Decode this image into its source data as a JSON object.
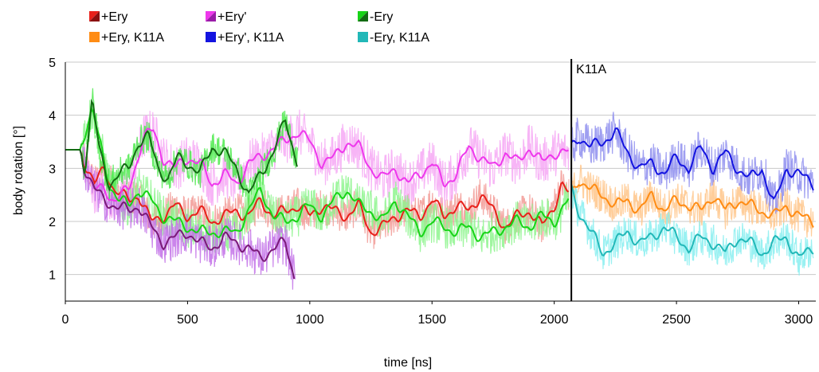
{
  "chart_data": {
    "type": "line",
    "xlabel": "time [ns]",
    "ylabel": "body rotation [°]",
    "xlim": [
      0,
      3070
    ],
    "ylim": [
      0.5,
      5
    ],
    "xticks": [
      0,
      500,
      1000,
      1500,
      2000,
      2500,
      3000
    ],
    "yticks": [
      1,
      2,
      3,
      4,
      5
    ],
    "grid": "horizontal",
    "legend_position": "top-left",
    "annotation": {
      "label": "K11A",
      "x": 2070
    },
    "series": [
      {
        "name": "+Ery",
        "color": "#e8211b",
        "raw_color": "#f29a95",
        "noise": 0.35,
        "points": [
          [
            0,
            3.35
          ],
          [
            60,
            3.35
          ],
          [
            80,
            3.1
          ],
          [
            120,
            2.7
          ],
          [
            160,
            3.0
          ],
          [
            200,
            2.6
          ],
          [
            260,
            2.4
          ],
          [
            300,
            2.5
          ],
          [
            350,
            2.0
          ],
          [
            400,
            2.1
          ],
          [
            450,
            2.3
          ],
          [
            500,
            2.1
          ],
          [
            550,
            2.2
          ],
          [
            600,
            2.0
          ],
          [
            650,
            2.1
          ],
          [
            700,
            2.2
          ],
          [
            750,
            2.1
          ],
          [
            800,
            2.4
          ],
          [
            850,
            2.1
          ],
          [
            900,
            2.2
          ],
          [
            950,
            2.3
          ],
          [
            1000,
            2.1
          ],
          [
            1050,
            2.3
          ],
          [
            1100,
            2.2
          ],
          [
            1150,
            2.1
          ],
          [
            1200,
            2.3
          ],
          [
            1250,
            1.8
          ],
          [
            1300,
            1.9
          ],
          [
            1350,
            2.1
          ],
          [
            1400,
            2.2
          ],
          [
            1450,
            2.1
          ],
          [
            1500,
            2.4
          ],
          [
            1550,
            2.1
          ],
          [
            1600,
            2.3
          ],
          [
            1650,
            2.2
          ],
          [
            1700,
            2.5
          ],
          [
            1750,
            2.2
          ],
          [
            1800,
            1.9
          ],
          [
            1850,
            2.1
          ],
          [
            1900,
            2.2
          ],
          [
            1950,
            1.9
          ],
          [
            2000,
            2.3
          ],
          [
            2030,
            2.7
          ],
          [
            2060,
            2.5
          ]
        ]
      },
      {
        "name": "+Ery'",
        "color": "#ee38ec",
        "raw_color": "#f6a8f4",
        "noise": 0.45,
        "points": [
          [
            0,
            3.35
          ],
          [
            60,
            3.35
          ],
          [
            80,
            3.0
          ],
          [
            120,
            2.6
          ],
          [
            160,
            2.6
          ],
          [
            200,
            2.4
          ],
          [
            260,
            2.6
          ],
          [
            320,
            3.6
          ],
          [
            360,
            3.7
          ],
          [
            400,
            3.2
          ],
          [
            450,
            3.0
          ],
          [
            500,
            3.2
          ],
          [
            550,
            3.1
          ],
          [
            600,
            2.7
          ],
          [
            650,
            2.9
          ],
          [
            700,
            2.7
          ],
          [
            750,
            3.1
          ],
          [
            800,
            3.2
          ],
          [
            850,
            3.4
          ],
          [
            900,
            3.5
          ],
          [
            950,
            3.7
          ],
          [
            1000,
            3.5
          ],
          [
            1050,
            3.1
          ],
          [
            1100,
            3.2
          ],
          [
            1150,
            3.5
          ],
          [
            1200,
            3.4
          ],
          [
            1250,
            3.0
          ],
          [
            1300,
            2.8
          ],
          [
            1350,
            3.0
          ],
          [
            1400,
            2.7
          ],
          [
            1450,
            2.9
          ],
          [
            1500,
            3.1
          ],
          [
            1550,
            2.7
          ],
          [
            1600,
            2.9
          ],
          [
            1650,
            3.4
          ],
          [
            1700,
            3.2
          ],
          [
            1750,
            3.0
          ],
          [
            1800,
            3.3
          ],
          [
            1850,
            3.1
          ],
          [
            1900,
            3.4
          ],
          [
            1950,
            3.1
          ],
          [
            2000,
            3.3
          ],
          [
            2060,
            3.3
          ]
        ]
      },
      {
        "name": "-Ery",
        "color": "#17d417",
        "raw_color": "#8ef58e",
        "noise": 0.4,
        "points": [
          [
            0,
            3.35
          ],
          [
            60,
            3.35
          ],
          [
            80,
            3.7
          ],
          [
            110,
            4.1
          ],
          [
            140,
            3.5
          ],
          [
            180,
            2.7
          ],
          [
            220,
            2.4
          ],
          [
            260,
            2.3
          ],
          [
            300,
            2.6
          ],
          [
            350,
            2.4
          ],
          [
            400,
            2.1
          ],
          [
            450,
            2.0
          ],
          [
            500,
            1.9
          ],
          [
            550,
            1.8
          ],
          [
            600,
            1.8
          ],
          [
            650,
            1.8
          ],
          [
            700,
            1.8
          ],
          [
            750,
            2.2
          ],
          [
            800,
            2.6
          ],
          [
            850,
            2.1
          ],
          [
            900,
            2.0
          ],
          [
            950,
            2.1
          ],
          [
            1000,
            2.3
          ],
          [
            1050,
            2.1
          ],
          [
            1100,
            2.4
          ],
          [
            1150,
            2.6
          ],
          [
            1200,
            2.3
          ],
          [
            1250,
            2.2
          ],
          [
            1300,
            2.0
          ],
          [
            1350,
            2.4
          ],
          [
            1400,
            2.1
          ],
          [
            1450,
            1.8
          ],
          [
            1500,
            2.0
          ],
          [
            1550,
            1.9
          ],
          [
            1600,
            1.8
          ],
          [
            1650,
            1.9
          ],
          [
            1700,
            1.7
          ],
          [
            1750,
            1.8
          ],
          [
            1800,
            1.9
          ],
          [
            1850,
            2.0
          ],
          [
            1900,
            1.9
          ],
          [
            1950,
            2.1
          ],
          [
            2000,
            2.0
          ],
          [
            2060,
            2.4
          ]
        ]
      },
      {
        "name": "+Ery, K11A",
        "color": "#ff8c14",
        "raw_color": "#ffc58a",
        "noise": 0.35,
        "points": [
          [
            2070,
            2.5
          ],
          [
            2100,
            2.8
          ],
          [
            2150,
            2.6
          ],
          [
            2200,
            2.5
          ],
          [
            2250,
            2.3
          ],
          [
            2300,
            2.4
          ],
          [
            2350,
            2.2
          ],
          [
            2400,
            2.5
          ],
          [
            2450,
            2.2
          ],
          [
            2500,
            2.4
          ],
          [
            2550,
            2.3
          ],
          [
            2600,
            2.2
          ],
          [
            2650,
            2.5
          ],
          [
            2700,
            2.2
          ],
          [
            2750,
            2.4
          ],
          [
            2800,
            2.3
          ],
          [
            2850,
            2.2
          ],
          [
            2900,
            2.1
          ],
          [
            2950,
            2.3
          ],
          [
            3000,
            2.1
          ],
          [
            3060,
            2.0
          ]
        ]
      },
      {
        "name": "+Ery', K11A",
        "color": "#1414e0",
        "raw_color": "#8e8eee",
        "noise": 0.4,
        "points": [
          [
            2070,
            3.4
          ],
          [
            2100,
            3.6
          ],
          [
            2150,
            3.4
          ],
          [
            2200,
            3.5
          ],
          [
            2250,
            3.7
          ],
          [
            2300,
            3.3
          ],
          [
            2350,
            3.0
          ],
          [
            2400,
            3.1
          ],
          [
            2450,
            2.9
          ],
          [
            2500,
            3.2
          ],
          [
            2550,
            3.0
          ],
          [
            2600,
            3.4
          ],
          [
            2650,
            3.0
          ],
          [
            2700,
            3.3
          ],
          [
            2750,
            3.0
          ],
          [
            2800,
            2.8
          ],
          [
            2850,
            3.0
          ],
          [
            2900,
            2.3
          ],
          [
            2950,
            3.0
          ],
          [
            3000,
            2.9
          ],
          [
            3060,
            2.7
          ]
        ]
      },
      {
        "name": "-Ery, K11A",
        "color": "#22b8b8",
        "raw_color": "#88eef0",
        "noise": 0.35,
        "points": [
          [
            2070,
            2.6
          ],
          [
            2100,
            2.2
          ],
          [
            2150,
            1.8
          ],
          [
            2200,
            1.4
          ],
          [
            2250,
            1.6
          ],
          [
            2300,
            1.8
          ],
          [
            2350,
            1.6
          ],
          [
            2400,
            1.7
          ],
          [
            2450,
            1.9
          ],
          [
            2500,
            1.7
          ],
          [
            2550,
            1.5
          ],
          [
            2600,
            1.7
          ],
          [
            2650,
            1.6
          ],
          [
            2700,
            1.4
          ],
          [
            2750,
            1.7
          ],
          [
            2800,
            1.6
          ],
          [
            2850,
            1.4
          ],
          [
            2900,
            1.6
          ],
          [
            2950,
            1.7
          ],
          [
            3000,
            1.3
          ],
          [
            3060,
            1.5
          ]
        ]
      }
    ],
    "extra_series": [
      {
        "color": "#7a1a78",
        "raw_color": "#c270e8",
        "noise": 0.4,
        "points": [
          [
            0,
            3.35
          ],
          [
            60,
            3.35
          ],
          [
            80,
            3.0
          ],
          [
            120,
            2.6
          ],
          [
            160,
            2.4
          ],
          [
            200,
            2.3
          ],
          [
            260,
            2.2
          ],
          [
            300,
            2.3
          ],
          [
            350,
            1.9
          ],
          [
            400,
            1.6
          ],
          [
            450,
            1.7
          ],
          [
            500,
            1.8
          ],
          [
            550,
            1.6
          ],
          [
            600,
            1.5
          ],
          [
            650,
            1.7
          ],
          [
            700,
            1.6
          ],
          [
            750,
            1.5
          ],
          [
            800,
            1.3
          ],
          [
            850,
            1.5
          ],
          [
            900,
            1.6
          ],
          [
            940,
            0.9
          ]
        ]
      },
      {
        "color": "#136b13",
        "raw_color": "#4cea4c",
        "noise": 0.3,
        "points": [
          [
            0,
            3.35
          ],
          [
            60,
            3.35
          ],
          [
            80,
            3.0
          ],
          [
            110,
            4.3
          ],
          [
            140,
            3.3
          ],
          [
            180,
            2.7
          ],
          [
            220,
            2.9
          ],
          [
            260,
            3.0
          ],
          [
            300,
            3.5
          ],
          [
            340,
            3.6
          ],
          [
            380,
            3.0
          ],
          [
            420,
            2.8
          ],
          [
            460,
            3.2
          ],
          [
            500,
            3.1
          ],
          [
            550,
            2.9
          ],
          [
            600,
            3.4
          ],
          [
            650,
            3.3
          ],
          [
            700,
            3.0
          ],
          [
            750,
            2.5
          ],
          [
            800,
            2.9
          ],
          [
            850,
            3.3
          ],
          [
            900,
            3.9
          ],
          [
            950,
            3.1
          ]
        ]
      }
    ]
  }
}
